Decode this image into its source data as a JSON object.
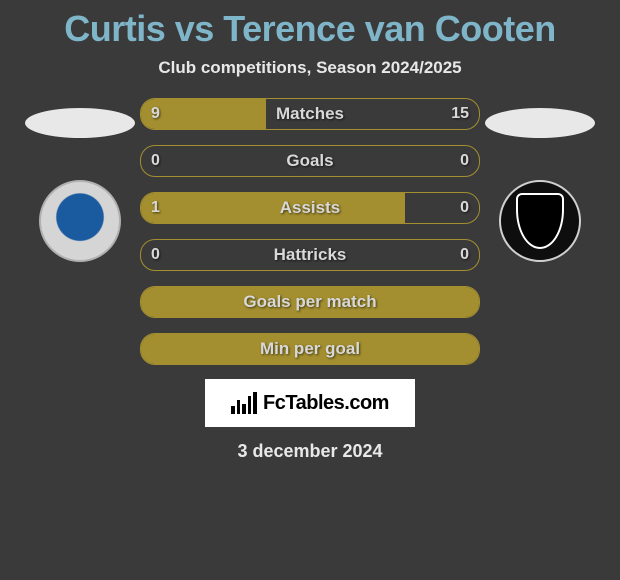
{
  "header": {
    "title": "Curtis vs Terence van Cooten",
    "subtitle": "Club competitions, Season 2024/2025"
  },
  "colors": {
    "accent": "#a38f2f",
    "title": "#7fb5c9",
    "text": "#e8e8e8",
    "background": "#3a3a3a",
    "brand_bg": "#ffffff"
  },
  "stats": {
    "rows": [
      {
        "label": "Matches",
        "left": "9",
        "right": "15",
        "left_pct": 37,
        "right_pct": 0
      },
      {
        "label": "Goals",
        "left": "0",
        "right": "0",
        "left_pct": 0,
        "right_pct": 0
      },
      {
        "label": "Assists",
        "left": "1",
        "right": "0",
        "left_pct": 78,
        "right_pct": 0
      },
      {
        "label": "Hattricks",
        "left": "0",
        "right": "0",
        "left_pct": 0,
        "right_pct": 0
      },
      {
        "label": "Goals per match",
        "left": "",
        "right": "",
        "left_pct": 100,
        "right_pct": 0,
        "full": true
      },
      {
        "label": "Min per goal",
        "left": "",
        "right": "",
        "left_pct": 100,
        "right_pct": 0,
        "full": true
      }
    ]
  },
  "branding": {
    "text": "FcTables.com"
  },
  "footer": {
    "date": "3 december 2024"
  }
}
